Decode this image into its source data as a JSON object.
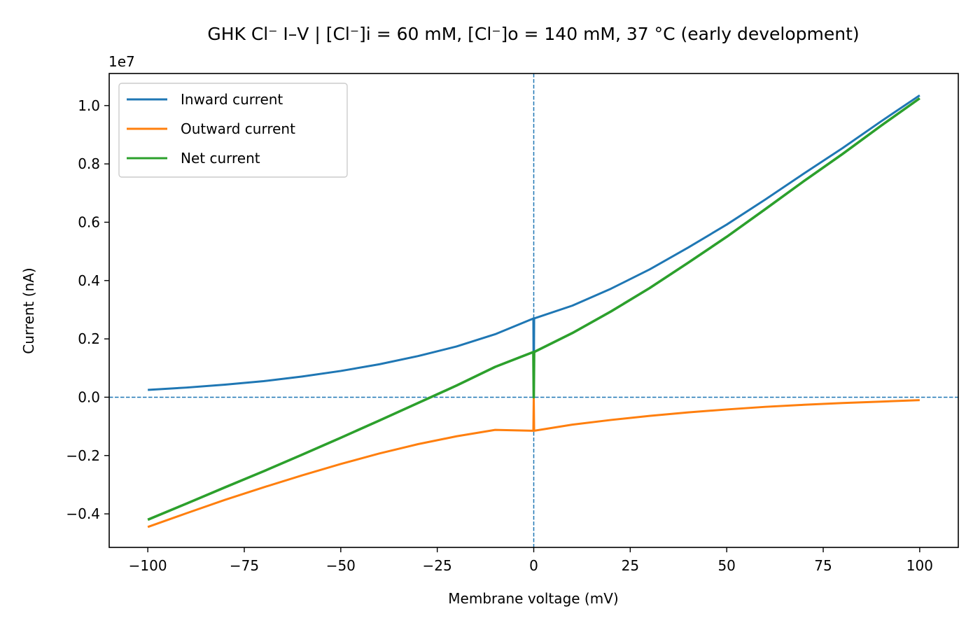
{
  "chart_data": {
    "type": "line",
    "title": "GHK Cl⁻ I–V  |  [Cl⁻]i = 60 mM, [Cl⁻]o = 140 mM, 37 °C  (early development)",
    "xlabel": "Membrane voltage (mV)",
    "ylabel": "Current (nA)",
    "y_offset_label": "1e7",
    "xlim": [
      -110,
      110
    ],
    "ylim": [
      -5.15,
      11.1
    ],
    "y_scale_factor": 10000000,
    "x_ticks": [
      -100,
      -75,
      -50,
      -25,
      0,
      25,
      50,
      75,
      100
    ],
    "x_tick_labels": [
      "−100",
      "−75",
      "−50",
      "−25",
      "0",
      "25",
      "50",
      "75",
      "100"
    ],
    "y_ticks": [
      -4,
      -2,
      0,
      2,
      4,
      6,
      8,
      10
    ],
    "y_tick_labels": [
      "−0.4",
      "−0.2",
      "0.0",
      "0.2",
      "0.4",
      "0.6",
      "0.8",
      "1.0"
    ],
    "reference_lines": {
      "x": 0,
      "y": 0,
      "style": "dashed",
      "color": "#1f77b4"
    },
    "legend": {
      "position": "upper-left"
    },
    "grid": false,
    "series": [
      {
        "name": "Inward current",
        "color": "#1f77b4",
        "x": [
          -100,
          -90,
          -80,
          -70,
          -60,
          -50,
          -40,
          -30,
          -20,
          -10,
          -0.1,
          0,
          0.1,
          10,
          20,
          30,
          40,
          50,
          60,
          70,
          80,
          90,
          100
        ],
        "values": [
          0.25,
          0.33,
          0.43,
          0.55,
          0.71,
          0.9,
          1.13,
          1.41,
          1.74,
          2.16,
          2.7,
          0.0,
          2.7,
          3.14,
          3.72,
          4.38,
          5.13,
          5.92,
          6.78,
          7.67,
          8.54,
          9.46,
          10.35
        ]
      },
      {
        "name": "Outward current",
        "color": "#ff7f0e",
        "x": [
          -100,
          -90,
          -80,
          -70,
          -60,
          -50,
          -40,
          -30,
          -20,
          -10,
          -0.1,
          0,
          0.1,
          10,
          20,
          30,
          40,
          50,
          60,
          70,
          80,
          90,
          100
        ],
        "values": [
          -4.45,
          -3.98,
          -3.52,
          -3.09,
          -2.68,
          -2.29,
          -1.93,
          -1.61,
          -1.34,
          -1.12,
          -1.15,
          0.0,
          -1.15,
          -0.94,
          -0.78,
          -0.64,
          -0.52,
          -0.42,
          -0.33,
          -0.26,
          -0.2,
          -0.15,
          -0.1
        ]
      },
      {
        "name": "Net current",
        "color": "#2ca02c",
        "x": [
          -100,
          -90,
          -80,
          -70,
          -60,
          -50,
          -40,
          -30,
          -20,
          -10,
          -0.1,
          0,
          0.1,
          10,
          20,
          30,
          40,
          50,
          60,
          70,
          80,
          90,
          100
        ],
        "values": [
          -4.2,
          -3.65,
          -3.09,
          -2.54,
          -1.97,
          -1.39,
          -0.8,
          -0.2,
          0.4,
          1.04,
          1.55,
          0.0,
          1.55,
          2.2,
          2.94,
          3.74,
          4.61,
          5.5,
          6.45,
          7.41,
          8.34,
          9.31,
          10.25
        ]
      }
    ]
  }
}
